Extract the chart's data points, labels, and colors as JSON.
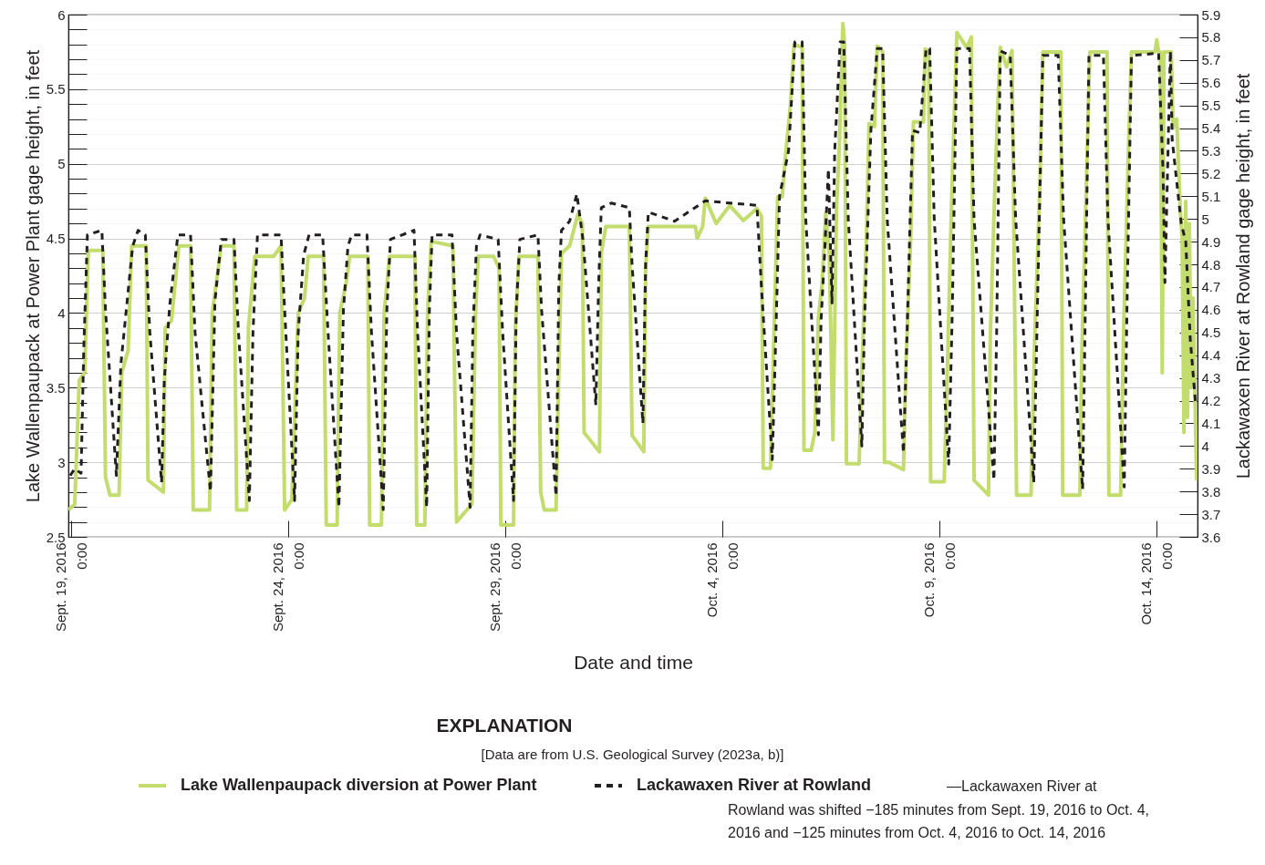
{
  "chart_data": {
    "type": "line",
    "xlabel": "Date and time",
    "ylabel": "Lake Wallenpaupack at Power Plant gage height, in feet",
    "y2label": "Lackawaxen River at Rowland gage height, in feet",
    "legend_title": "EXPLANATION",
    "legend": "bottom",
    "grid": "y",
    "annotations": [
      "[Data are from U.S. Geological Survey (2023a, b)]",
      "—Lackawaxen River at Rowland was shifted −185 minutes from Sept. 19, 2016 to Oct. 4, 2016 and −125 minutes from Oct. 4, 2016 to Oct. 14, 2016"
    ],
    "xlim": [
      "2016-09-18T22:30",
      "2016-10-14T22:30"
    ],
    "xticks": [
      {
        "value": "2016-09-19",
        "label": "Sept. 19, 2016 0:00"
      },
      {
        "value": "2016-09-24",
        "label": "Sept. 24, 2016 0:00"
      },
      {
        "value": "2016-09-29",
        "label": "Sept. 29, 2016 0:00"
      },
      {
        "value": "2016-10-04",
        "label": "Oct. 4, 2016 0:00"
      },
      {
        "value": "2016-10-09",
        "label": "Oct. 9, 2016 0:00"
      },
      {
        "value": "2016-10-14",
        "label": "Oct. 14, 2016 0:00"
      }
    ],
    "ylim": [
      2.5,
      6
    ],
    "yticks": [
      2.5,
      {
        "value": 2.6,
        "label": null
      },
      {
        "value": 2.7,
        "label": null
      },
      {
        "value": 2.8,
        "label": null
      },
      {
        "value": 2.9,
        "label": null
      },
      3,
      {
        "value": 3.1,
        "label": null
      },
      {
        "value": 3.2,
        "label": null
      },
      {
        "value": 3.3,
        "label": null
      },
      {
        "value": 3.4,
        "label": null
      },
      3.5,
      {
        "value": 3.6,
        "label": null
      },
      {
        "value": 3.7,
        "label": null
      },
      {
        "value": 3.8,
        "label": null
      },
      {
        "value": 3.9,
        "label": null
      },
      4,
      {
        "value": 4.1,
        "label": null
      },
      {
        "value": 4.2,
        "label": null
      },
      {
        "value": 4.3,
        "label": null
      },
      {
        "value": 4.4,
        "label": null
      },
      4.5,
      {
        "value": 4.6,
        "label": null
      },
      {
        "value": 4.7,
        "label": null
      },
      {
        "value": 4.8,
        "label": null
      },
      {
        "value": 4.9,
        "label": null
      },
      5,
      {
        "value": 5.1,
        "label": null
      },
      {
        "value": 5.2,
        "label": null
      },
      {
        "value": 5.3,
        "label": null
      },
      {
        "value": 5.4,
        "label": null
      },
      5.5,
      {
        "value": 5.6,
        "label": null
      },
      {
        "value": 5.7,
        "label": null
      },
      {
        "value": 5.8,
        "label": null
      },
      {
        "value": 5.9,
        "label": null
      },
      6
    ],
    "y2lim": [
      3.6,
      5.9
    ],
    "y2ticks": [
      3.6,
      3.7,
      3.8,
      3.9,
      4,
      4.1,
      4.2,
      4.3,
      4.4,
      4.5,
      4.6,
      4.7,
      4.8,
      4.9,
      5,
      5.1,
      5.2,
      5.3,
      5.4,
      5.5,
      5.6,
      5.7,
      5.8,
      5.9
    ],
    "series": [
      {
        "name": "Lake Wallenpaupack diversion at Power Plant",
        "color": "#c3dc6e",
        "line_style": "solid",
        "x": [
          "2016-09-18T22:30",
          "2016-09-19T02:00",
          "2016-09-19T04:30",
          "2016-09-19T07:30",
          "2016-09-19T09:30",
          "2016-09-19T17:30",
          "2016-09-19T19:00",
          "2016-09-19T21:30",
          "2016-09-20T02:30",
          "2016-09-20T04:00",
          "2016-09-20T07:30",
          "2016-09-20T09:30",
          "2016-09-20T17:30",
          "2016-09-20T18:30",
          "2016-09-21T03:00",
          "2016-09-21T04:00",
          "2016-09-21T07:30",
          "2016-09-21T11:30",
          "2016-09-21T18:00",
          "2016-09-21T19:30",
          "2016-09-22T04:30",
          "2016-09-22T06:00",
          "2016-09-22T11:00",
          "2016-09-22T18:00",
          "2016-09-22T19:30",
          "2016-09-23T01:00",
          "2016-09-23T02:00",
          "2016-09-23T05:30",
          "2016-09-23T16:00",
          "2016-09-23T20:00",
          "2016-09-23T22:00",
          "2016-09-24T02:00",
          "2016-09-24T05:30",
          "2016-09-24T09:00",
          "2016-09-24T11:00",
          "2016-09-24T19:30",
          "2016-09-24T21:00",
          "2016-09-25T03:00",
          "2016-09-25T04:30",
          "2016-09-25T08:00",
          "2016-09-25T10:00",
          "2016-09-25T20:00",
          "2016-09-25T21:00",
          "2016-09-26T03:30",
          "2016-09-26T05:00",
          "2016-09-26T08:00",
          "2016-09-26T22:00",
          "2016-09-26T23:00",
          "2016-09-27T03:30",
          "2016-09-27T05:00",
          "2016-09-27T07:00",
          "2016-09-27T19:00",
          "2016-09-27T21:00",
          "2016-09-28T05:30",
          "2016-09-28T07:30",
          "2016-09-28T09:00",
          "2016-09-28T17:30",
          "2016-09-28T20:30",
          "2016-09-28T21:30",
          "2016-09-29T04:30",
          "2016-09-29T05:30",
          "2016-09-29T07:30",
          "2016-09-29T18:00",
          "2016-09-29T19:30",
          "2016-09-29T21:30",
          "2016-09-30T04:00",
          "2016-09-30T05:30",
          "2016-09-30T07:00",
          "2016-09-30T11:30",
          "2016-09-30T16:00",
          "2016-09-30T18:30",
          "2016-09-30T19:30",
          "2016-10-01T04:00",
          "2016-10-01T05:00",
          "2016-10-01T07:30",
          "2016-10-01T20:30",
          "2016-10-01T22:00",
          "2016-10-02T04:30",
          "2016-10-02T05:30",
          "2016-10-02T07:00",
          "2016-10-03T09:00",
          "2016-10-03T10:00",
          "2016-10-03T13:00",
          "2016-10-03T14:30",
          "2016-10-03T20:30",
          "2016-10-04T04:00",
          "2016-10-04T11:30",
          "2016-10-04T19:00",
          "2016-10-04T21:30",
          "2016-10-04T22:30",
          "2016-10-05T02:30",
          "2016-10-05T04:30",
          "2016-10-05T06:30",
          "2016-10-05T09:00",
          "2016-10-05T11:00",
          "2016-10-05T13:30",
          "2016-10-05T15:30",
          "2016-10-05T20:00",
          "2016-10-05T21:00",
          "2016-10-06T01:00",
          "2016-10-06T03:00",
          "2016-10-06T05:00",
          "2016-10-06T07:00",
          "2016-10-06T09:00",
          "2016-10-06T11:00",
          "2016-10-06T13:00",
          "2016-10-06T15:00",
          "2016-10-06T16:30",
          "2016-10-06T18:30",
          "2016-10-06T19:30",
          "2016-10-06T20:30",
          "2016-10-07T03:30",
          "2016-10-07T05:00",
          "2016-10-07T07:30",
          "2016-10-07T09:00",
          "2016-10-07T12:00",
          "2016-10-07T13:30",
          "2016-10-07T16:30",
          "2016-10-07T17:30",
          "2016-10-07T20:00",
          "2016-10-08T04:00",
          "2016-10-08T05:30",
          "2016-10-08T08:00",
          "2016-10-08T09:30",
          "2016-10-08T15:00",
          "2016-10-08T16:00",
          "2016-10-08T18:00",
          "2016-10-08T19:00",
          "2016-10-09T02:30",
          "2016-10-09T04:00",
          "2016-10-09T06:30",
          "2016-10-09T08:00",
          "2016-10-09T09:30",
          "2016-10-09T15:00",
          "2016-10-09T17:30",
          "2016-10-09T19:00",
          "2016-10-10T03:00",
          "2016-10-10T04:00",
          "2016-10-10T06:00",
          "2016-10-10T08:00",
          "2016-10-10T09:30",
          "2016-10-10T13:00",
          "2016-10-10T16:00",
          "2016-10-10T18:30",
          "2016-10-11T02:30",
          "2016-10-11T04:30",
          "2016-10-11T07:30",
          "2016-10-11T09:00",
          "2016-10-11T19:00",
          "2016-10-11T20:00",
          "2016-10-12T05:30",
          "2016-10-12T06:30",
          "2016-10-12T08:30",
          "2016-10-12T10:00",
          "2016-10-12T11:00",
          "2016-10-12T20:30",
          "2016-10-12T21:30",
          "2016-10-13T04:00",
          "2016-10-13T05:30",
          "2016-10-13T08:30",
          "2016-10-13T10:00",
          "2016-10-13T23:00",
          "2016-10-14T00:00",
          "2016-10-14T01:00",
          "2016-10-14T02:00",
          "2016-10-14T03:00",
          "2016-10-14T04:00",
          "2016-10-14T08:00",
          "2016-10-14T09:00",
          "2016-10-14T11:00",
          "2016-10-14T13:00",
          "2016-10-14T14:00",
          "2016-10-14T15:00",
          "2016-10-14T16:00",
          "2016-10-14T17:00",
          "2016-10-14T18:00",
          "2016-10-14T19:00",
          "2016-10-14T20:00",
          "2016-10-14T22:00"
        ],
        "values": [
          2.68,
          2.72,
          3.55,
          3.6,
          4.42,
          4.42,
          2.9,
          2.78,
          2.78,
          3.6,
          3.75,
          4.45,
          4.45,
          2.88,
          2.8,
          3.9,
          3.95,
          4.45,
          4.45,
          2.68,
          2.68,
          4.0,
          4.45,
          4.45,
          2.68,
          2.68,
          3.9,
          4.38,
          4.38,
          4.45,
          2.68,
          2.75,
          4.0,
          4.1,
          4.38,
          4.38,
          2.58,
          2.58,
          4.0,
          4.2,
          4.38,
          4.38,
          2.58,
          2.58,
          4.0,
          4.38,
          4.38,
          2.58,
          2.58,
          4.0,
          4.48,
          4.45,
          2.6,
          2.72,
          4.0,
          4.38,
          4.38,
          4.3,
          2.58,
          2.58,
          3.9,
          4.38,
          4.38,
          2.8,
          2.68,
          2.68,
          3.6,
          4.4,
          4.45,
          4.66,
          4.6,
          3.2,
          3.07,
          4.4,
          4.58,
          4.58,
          3.18,
          3.07,
          4.3,
          4.58,
          4.58,
          4.5,
          4.58,
          4.77,
          4.6,
          4.72,
          4.62,
          4.7,
          4.65,
          2.96,
          2.96,
          3.9,
          4.78,
          4.78,
          5.08,
          5.39,
          5.8,
          5.78,
          3.08,
          3.08,
          3.2,
          3.97,
          4.2,
          4.67,
          4.4,
          3.15,
          4.7,
          5.1,
          5.94,
          5.8,
          2.99,
          2.99,
          3.6,
          4.5,
          5.27,
          5.25,
          5.79,
          5.75,
          3.0,
          3.0,
          2.95,
          3.7,
          4.5,
          5.28,
          5.28,
          5.77,
          5.75,
          2.87,
          2.87,
          3.5,
          4.7,
          5.3,
          5.88,
          5.78,
          5.85,
          2.88,
          2.78,
          3.84,
          4.65,
          5.35,
          5.78,
          5.65,
          5.76,
          2.78,
          2.78,
          3.8,
          4.9,
          5.75,
          5.75,
          2.78,
          2.78,
          3.7,
          4.6,
          5.3,
          5.75,
          5.75,
          2.78,
          2.78,
          3.8,
          5.17,
          5.75,
          5.75,
          5.83,
          5.75,
          5.75,
          3.6,
          5.75,
          5.75,
          5.24,
          5.3,
          4.69,
          4.5,
          3.2,
          4.75,
          3.3,
          4.6,
          3.5,
          4.1,
          2.88
        ]
      },
      {
        "name": "Lackawaxen River at Rowland",
        "color": "#231f20",
        "line_style": "dashed",
        "axis": "y2",
        "x": [
          "2016-09-18T23:30",
          "2016-09-19T02:00",
          "2016-09-19T05:30",
          "2016-09-19T07:00",
          "2016-09-19T09:00",
          "2016-09-19T17:00",
          "2016-09-19T19:00",
          "2016-09-20T01:00",
          "2016-09-20T03:30",
          "2016-09-20T07:00",
          "2016-09-20T10:00",
          "2016-09-20T13:00",
          "2016-09-20T17:00",
          "2016-09-20T19:30",
          "2016-09-21T02:00",
          "2016-09-21T03:30",
          "2016-09-21T06:30",
          "2016-09-21T11:00",
          "2016-09-21T18:00",
          "2016-09-21T20:30",
          "2016-09-22T05:00",
          "2016-09-22T07:30",
          "2016-09-22T11:00",
          "2016-09-22T18:00",
          "2016-09-22T20:30",
          "2016-09-23T02:30",
          "2016-09-23T04:30",
          "2016-09-23T07:00",
          "2016-09-23T20:00",
          "2016-09-23T22:00",
          "2016-09-24T03:30",
          "2016-09-24T05:30",
          "2016-09-24T08:30",
          "2016-09-24T11:30",
          "2016-09-24T19:00",
          "2016-09-24T22:00",
          "2016-09-25T04:00",
          "2016-09-25T06:30",
          "2016-09-25T09:00",
          "2016-09-25T11:00",
          "2016-09-25T19:30",
          "2016-09-25T22:00",
          "2016-09-26T04:30",
          "2016-09-26T06:30",
          "2016-09-26T08:30",
          "2016-09-26T21:30",
          "2016-09-26T23:30",
          "2016-09-27T04:30",
          "2016-09-27T06:00",
          "2016-09-27T07:30",
          "2016-09-27T18:30",
          "2016-09-27T21:00",
          "2016-09-28T04:30",
          "2016-09-28T06:00",
          "2016-09-28T08:00",
          "2016-09-28T10:00",
          "2016-09-28T20:00",
          "2016-09-28T22:30",
          "2016-09-29T04:30",
          "2016-09-29T06:00",
          "2016-09-29T08:00",
          "2016-09-29T18:00",
          "2016-09-29T20:00",
          "2016-09-30T04:00",
          "2016-09-30T05:30",
          "2016-09-30T07:00",
          "2016-09-30T11:30",
          "2016-09-30T15:30",
          "2016-09-30T19:00",
          "2016-10-01T02:00",
          "2016-10-01T03:30",
          "2016-10-01T05:00",
          "2016-10-01T10:30",
          "2016-10-01T20:30",
          "2016-10-01T22:00",
          "2016-10-02T04:00",
          "2016-10-02T05:30",
          "2016-10-02T07:00",
          "2016-10-02T21:30",
          "2016-10-03T14:30",
          "2016-10-04T04:00",
          "2016-10-04T19:00",
          "2016-10-04T21:30",
          "2016-10-05T03:30",
          "2016-10-05T05:30",
          "2016-10-05T07:30",
          "2016-10-05T12:30",
          "2016-10-05T16:00",
          "2016-10-05T20:00",
          "2016-10-05T22:00",
          "2016-10-06T05:00",
          "2016-10-06T06:30",
          "2016-10-06T08:30",
          "2016-10-06T10:30",
          "2016-10-06T12:30",
          "2016-10-06T14:00",
          "2016-10-06T17:00",
          "2016-10-06T19:00",
          "2016-10-06T21:30",
          "2016-10-07T05:00",
          "2016-10-07T06:30",
          "2016-10-07T10:00",
          "2016-10-07T13:30",
          "2016-10-07T16:30",
          "2016-10-07T19:00",
          "2016-10-08T04:00",
          "2016-10-08T06:00",
          "2016-10-08T09:00",
          "2016-10-08T13:00",
          "2016-10-08T16:30",
          "2016-10-08T18:30",
          "2016-10-08T21:00",
          "2016-10-09T05:00",
          "2016-10-09T07:00",
          "2016-10-09T09:30",
          "2016-10-09T16:30",
          "2016-10-09T19:00",
          "2016-10-10T06:00",
          "2016-10-10T07:30",
          "2016-10-10T09:30",
          "2016-10-10T15:00",
          "2016-10-10T18:00",
          "2016-10-11T04:00",
          "2016-10-11T06:00",
          "2016-10-11T09:00",
          "2016-10-11T17:30",
          "2016-10-11T20:30",
          "2016-10-12T07:00",
          "2016-10-12T08:30",
          "2016-10-12T10:30",
          "2016-10-12T18:30",
          "2016-10-12T21:00",
          "2016-10-13T06:00",
          "2016-10-13T07:30",
          "2016-10-13T10:00",
          "2016-10-14T01:00",
          "2016-10-14T03:30",
          "2016-10-14T04:30",
          "2016-10-14T07:30",
          "2016-10-14T08:30",
          "2016-10-14T13:30",
          "2016-10-14T16:00",
          "2016-10-14T18:30",
          "2016-10-14T21:30"
        ],
        "values": [
          3.87,
          3.9,
          3.88,
          4.43,
          4.93,
          4.95,
          4.6,
          3.87,
          4.36,
          4.64,
          4.88,
          4.95,
          4.93,
          4.5,
          3.84,
          4.29,
          4.62,
          4.93,
          4.93,
          4.5,
          3.8,
          4.64,
          4.91,
          4.91,
          4.5,
          3.76,
          4.5,
          4.93,
          4.93,
          4.6,
          3.76,
          4.5,
          4.84,
          4.93,
          4.93,
          4.5,
          3.73,
          4.6,
          4.88,
          4.93,
          4.93,
          4.5,
          3.72,
          4.6,
          4.91,
          4.95,
          4.5,
          3.73,
          4.6,
          4.93,
          4.93,
          4.5,
          3.73,
          4.5,
          4.88,
          4.93,
          4.91,
          4.5,
          3.76,
          4.6,
          4.91,
          4.93,
          4.6,
          3.78,
          4.7,
          4.95,
          4.99,
          5.11,
          4.9,
          4.18,
          4.7,
          5.05,
          5.07,
          5.05,
          4.8,
          4.1,
          4.8,
          5.03,
          4.99,
          5.08,
          5.07,
          5.06,
          4.7,
          3.94,
          4.5,
          5.1,
          5.3,
          5.78,
          5.78,
          5.0,
          4.05,
          4.56,
          4.86,
          5.22,
          4.63,
          5.3,
          5.78,
          5.78,
          5.0,
          4.0,
          4.56,
          5.39,
          5.75,
          5.75,
          5.0,
          3.97,
          4.5,
          5.39,
          5.38,
          5.75,
          5.75,
          5.0,
          3.92,
          4.6,
          5.75,
          5.75,
          5.0,
          3.85,
          4.5,
          5.74,
          5.72,
          5.0,
          3.84,
          4.6,
          5.72,
          5.72,
          5.0,
          3.81,
          4.6,
          5.72,
          5.72,
          5.0,
          3.82,
          4.6,
          5.72,
          5.73,
          5.2,
          4.72,
          5.74,
          5.35,
          4.98,
          4.9,
          4.47,
          4.18
        ]
      }
    ]
  }
}
